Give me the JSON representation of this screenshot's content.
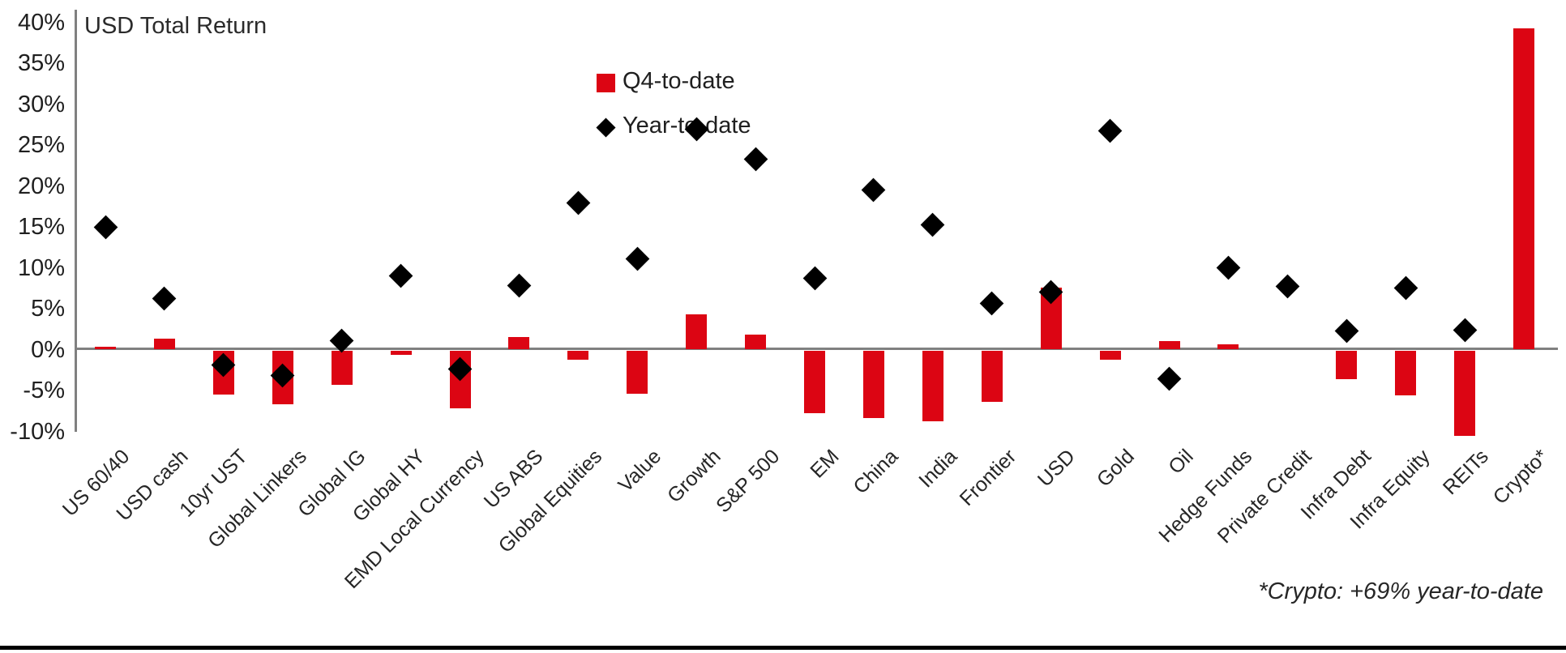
{
  "page": {
    "footnote": "*Crypto: +69% year-to-date"
  },
  "colors": {
    "bar_red": "#DC0513",
    "diamond_black": "#000000",
    "axis_gray": "#808080",
    "text_dark": "#222222"
  },
  "chart_data": {
    "type": "bar",
    "title": "USD Total Return",
    "categories": [
      "US 60/40",
      "USD cash",
      "10yr UST",
      "Global Linkers",
      "Global IG",
      "Global HY",
      "EMD Local Currency",
      "US ABS",
      "Global Equities",
      "Value",
      "Growth",
      "S&P 500",
      "EM",
      "China",
      "India",
      "Frontier",
      "USD",
      "Gold",
      "Oil",
      "Hedge Funds",
      "Private Credit",
      "Infra Debt",
      "Infra Equity",
      "REITs",
      "Crypto*"
    ],
    "series": [
      {
        "name": "Q4-to-date",
        "type": "bar",
        "marker": "square",
        "color": "#DC0513",
        "values": [
          0.3,
          1.3,
          -5.3,
          -6.5,
          -4.2,
          -0.5,
          -7.0,
          1.5,
          -1.1,
          -5.2,
          4.3,
          1.8,
          -7.6,
          -8.2,
          -8.6,
          -6.2,
          7.6,
          -1.1,
          1.0,
          0.6,
          0.0,
          -3.5,
          -5.4,
          -10.4,
          39.3
        ]
      },
      {
        "name": "Year-to-date",
        "type": "scatter",
        "marker": "diamond",
        "color": "#000000",
        "values": [
          15.0,
          6.2,
          -1.9,
          -3.2,
          1.1,
          9.0,
          -2.4,
          7.8,
          17.9,
          11.1,
          26.9,
          23.3,
          8.7,
          19.5,
          15.2,
          5.6,
          7.0,
          26.7,
          -3.6,
          10.0,
          7.7,
          2.3,
          7.5,
          2.4,
          null
        ]
      }
    ],
    "ylim": [
      -10,
      40
    ],
    "ytick_step": 5,
    "ytick_values": [
      40,
      35,
      30,
      25,
      20,
      15,
      10,
      5,
      0,
      -5,
      -10
    ],
    "ytick_labels": [
      "40%",
      "35%",
      "30%",
      "25%",
      "20%",
      "15%",
      "10%",
      "5%",
      "0%",
      "-5%",
      "-10%"
    ],
    "grid": false,
    "legend_position": "top-inside-left",
    "xlabel": "",
    "ylabel": "",
    "annotations": [
      "*Crypto: +69% year-to-date"
    ]
  }
}
